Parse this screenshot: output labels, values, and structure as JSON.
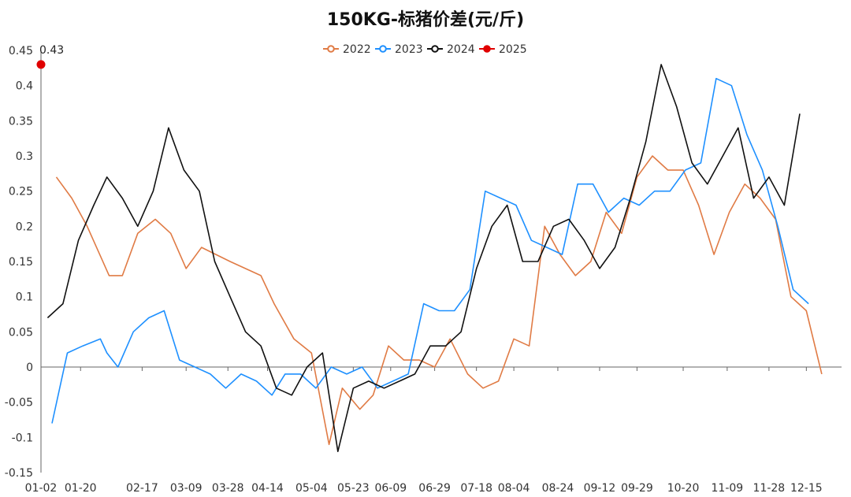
{
  "chart_data": {
    "type": "line",
    "title": "150KG-标猪价差(元/斤)",
    "xlabel": "",
    "ylabel": "",
    "ylim": [
      -0.15,
      0.45
    ],
    "yticks": [
      -0.15,
      -0.1,
      -0.05,
      0,
      0.05,
      0.1,
      0.15,
      0.2,
      0.25,
      0.3,
      0.35,
      0.4,
      0.45
    ],
    "ytick_labels": [
      "-0.15",
      "-0.1",
      "-0.05",
      "0",
      "0.05",
      "0.1",
      "0.15",
      "0.2",
      "0.25",
      "0.3",
      "0.35",
      "0.4",
      "0.45"
    ],
    "xlim": [
      1,
      365
    ],
    "xticks": [
      {
        "day": 1,
        "label": "01-02"
      },
      {
        "day": 19,
        "label": "01-20"
      },
      {
        "day": 47,
        "label": "02-17"
      },
      {
        "day": 67,
        "label": "03-09"
      },
      {
        "day": 86,
        "label": "03-28"
      },
      {
        "day": 104,
        "label": "04-14"
      },
      {
        "day": 124,
        "label": "05-04"
      },
      {
        "day": 143,
        "label": "05-23"
      },
      {
        "day": 160,
        "label": "06-09"
      },
      {
        "day": 180,
        "label": "06-29"
      },
      {
        "day": 199,
        "label": "07-18"
      },
      {
        "day": 216,
        "label": "08-04"
      },
      {
        "day": 236,
        "label": "08-24"
      },
      {
        "day": 255,
        "label": "09-12"
      },
      {
        "day": 272,
        "label": "09-29"
      },
      {
        "day": 293,
        "label": "10-20"
      },
      {
        "day": 313,
        "label": "11-09"
      },
      {
        "day": 332,
        "label": "11-28"
      },
      {
        "day": 349,
        "label": "12-15"
      }
    ],
    "grid": false,
    "legend_position": "top-center",
    "series": [
      {
        "name": "2022",
        "color": "#E07B45",
        "points": [
          [
            8,
            0.27
          ],
          [
            15,
            0.24
          ],
          [
            22,
            0.2
          ],
          [
            32,
            0.13
          ],
          [
            38,
            0.13
          ],
          [
            45,
            0.19
          ],
          [
            53,
            0.21
          ],
          [
            60,
            0.19
          ],
          [
            67,
            0.14
          ],
          [
            74,
            0.17
          ],
          [
            87,
            0.15
          ],
          [
            101,
            0.13
          ],
          [
            107,
            0.09
          ],
          [
            116,
            0.04
          ],
          [
            124,
            0.02
          ],
          [
            132,
            -0.11
          ],
          [
            138,
            -0.03
          ],
          [
            146,
            -0.06
          ],
          [
            152,
            -0.04
          ],
          [
            159,
            0.03
          ],
          [
            166,
            0.01
          ],
          [
            173,
            0.01
          ],
          [
            180,
            0.0
          ],
          [
            187,
            0.04
          ],
          [
            195,
            -0.01
          ],
          [
            202,
            -0.03
          ],
          [
            209,
            -0.02
          ],
          [
            216,
            0.04
          ],
          [
            223,
            0.03
          ],
          [
            230,
            0.2
          ],
          [
            237,
            0.16
          ],
          [
            244,
            0.13
          ],
          [
            251,
            0.15
          ],
          [
            258,
            0.22
          ],
          [
            265,
            0.19
          ],
          [
            272,
            0.27
          ],
          [
            279,
            0.3
          ],
          [
            286,
            0.28
          ],
          [
            293,
            0.28
          ],
          [
            300,
            0.23
          ],
          [
            307,
            0.16
          ],
          [
            314,
            0.22
          ],
          [
            321,
            0.26
          ],
          [
            328,
            0.24
          ],
          [
            335,
            0.21
          ],
          [
            342,
            0.1
          ],
          [
            349,
            0.08
          ],
          [
            356,
            -0.01
          ]
        ]
      },
      {
        "name": "2023",
        "color": "#1E90FF",
        "points": [
          [
            6,
            -0.08
          ],
          [
            13,
            0.02
          ],
          [
            20,
            0.03
          ],
          [
            28,
            0.04
          ],
          [
            31,
            0.02
          ],
          [
            36,
            0.0
          ],
          [
            43,
            0.05
          ],
          [
            50,
            0.07
          ],
          [
            57,
            0.08
          ],
          [
            64,
            0.01
          ],
          [
            71,
            0.0
          ],
          [
            78,
            -0.01
          ],
          [
            85,
            -0.03
          ],
          [
            92,
            -0.01
          ],
          [
            99,
            -0.02
          ],
          [
            106,
            -0.04
          ],
          [
            112,
            -0.01
          ],
          [
            119,
            -0.01
          ],
          [
            126,
            -0.03
          ],
          [
            133,
            0.0
          ],
          [
            140,
            -0.01
          ],
          [
            147,
            0.0
          ],
          [
            154,
            -0.03
          ],
          [
            161,
            -0.02
          ],
          [
            168,
            -0.01
          ],
          [
            175,
            0.09
          ],
          [
            182,
            0.08
          ],
          [
            189,
            0.08
          ],
          [
            196,
            0.11
          ],
          [
            203,
            0.25
          ],
          [
            210,
            0.24
          ],
          [
            217,
            0.23
          ],
          [
            224,
            0.18
          ],
          [
            231,
            0.17
          ],
          [
            238,
            0.16
          ],
          [
            245,
            0.26
          ],
          [
            252,
            0.26
          ],
          [
            259,
            0.22
          ],
          [
            266,
            0.24
          ],
          [
            273,
            0.23
          ],
          [
            280,
            0.25
          ],
          [
            287,
            0.25
          ],
          [
            294,
            0.28
          ],
          [
            301,
            0.29
          ],
          [
            308,
            0.41
          ],
          [
            315,
            0.4
          ],
          [
            322,
            0.33
          ],
          [
            329,
            0.28
          ],
          [
            336,
            0.2
          ],
          [
            343,
            0.11
          ],
          [
            350,
            0.09
          ]
        ]
      },
      {
        "name": "2024",
        "color": "#111111",
        "points": [
          [
            4,
            0.07
          ],
          [
            11,
            0.09
          ],
          [
            18,
            0.18
          ],
          [
            25,
            0.23
          ],
          [
            31,
            0.27
          ],
          [
            38,
            0.24
          ],
          [
            45,
            0.2
          ],
          [
            52,
            0.25
          ],
          [
            59,
            0.34
          ],
          [
            66,
            0.28
          ],
          [
            73,
            0.25
          ],
          [
            80,
            0.15
          ],
          [
            87,
            0.1
          ],
          [
            94,
            0.05
          ],
          [
            101,
            0.03
          ],
          [
            108,
            -0.03
          ],
          [
            115,
            -0.04
          ],
          [
            122,
            0.0
          ],
          [
            129,
            0.02
          ],
          [
            136,
            -0.12
          ],
          [
            143,
            -0.03
          ],
          [
            150,
            -0.02
          ],
          [
            157,
            -0.03
          ],
          [
            164,
            -0.02
          ],
          [
            171,
            -0.01
          ],
          [
            178,
            0.03
          ],
          [
            185,
            0.03
          ],
          [
            192,
            0.05
          ],
          [
            199,
            0.14
          ],
          [
            206,
            0.2
          ],
          [
            213,
            0.23
          ],
          [
            220,
            0.15
          ],
          [
            227,
            0.15
          ],
          [
            234,
            0.2
          ],
          [
            241,
            0.21
          ],
          [
            248,
            0.18
          ],
          [
            255,
            0.14
          ],
          [
            262,
            0.17
          ],
          [
            269,
            0.24
          ],
          [
            276,
            0.32
          ],
          [
            283,
            0.43
          ],
          [
            290,
            0.37
          ],
          [
            297,
            0.29
          ],
          [
            304,
            0.26
          ],
          [
            311,
            0.3
          ],
          [
            318,
            0.34
          ],
          [
            325,
            0.24
          ],
          [
            332,
            0.27
          ],
          [
            339,
            0.23
          ],
          [
            346,
            0.36
          ]
        ]
      },
      {
        "name": "2025",
        "color": "#E00000",
        "points": [
          [
            1,
            0.43
          ]
        ]
      }
    ],
    "annotations": [
      {
        "text": "0.43",
        "series": "2025",
        "x": 1,
        "y": 0.43
      }
    ]
  }
}
